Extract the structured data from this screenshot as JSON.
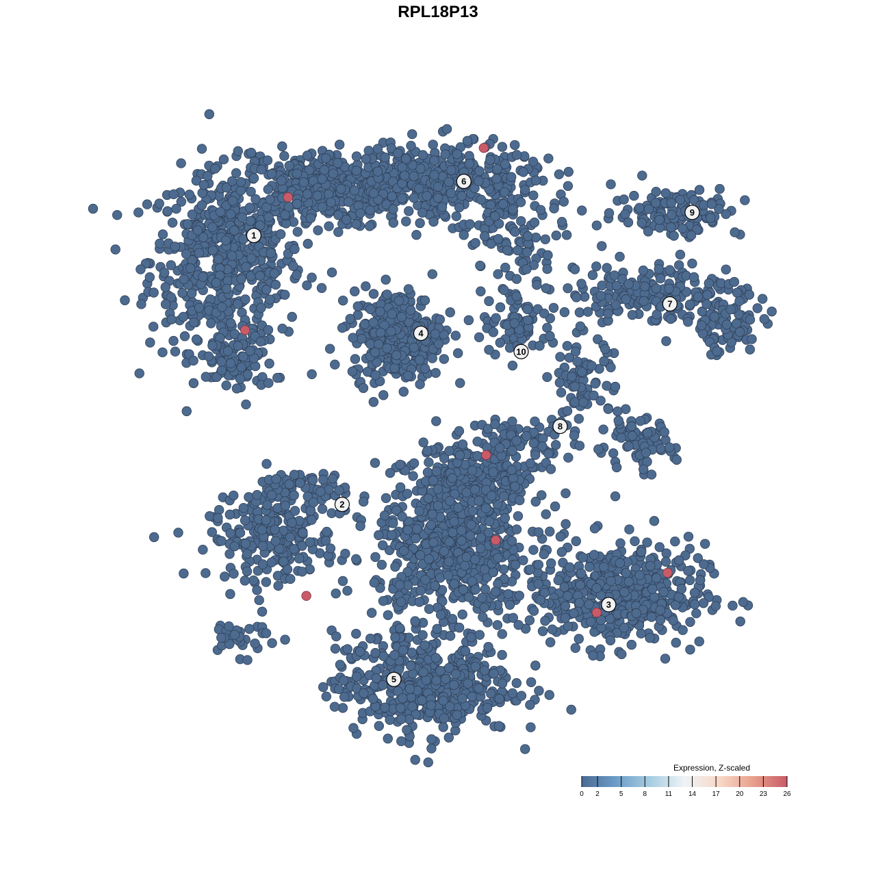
{
  "chart_data": {
    "type": "scatter",
    "title": "RPL18P13",
    "xlim": [
      -40,
      40
    ],
    "ylim": [
      -40,
      40
    ],
    "grid": false,
    "axes_visible": false,
    "point_color_low": "#4d6a8f",
    "point_stroke": "#2f4158",
    "point_color_high": "#c95b68",
    "clusters": [
      {
        "label": "1",
        "label_pos": [
          -25.3,
          25.2
        ],
        "regions": [
          [
            -28.8,
            22.1,
            6,
            7,
            520
          ],
          [
            -17.6,
            31.0,
            6,
            3,
            320
          ],
          [
            -27.5,
            9.2,
            3,
            2.5,
            90
          ]
        ]
      },
      {
        "label": "2",
        "label_pos": [
          -14.2,
          -8.6
        ],
        "regions": [
          [
            -22.8,
            -13.1,
            5,
            3,
            200
          ],
          [
            -20.2,
            -7.1,
            4,
            2,
            90
          ],
          [
            -27,
            -25.2,
            3,
            1.5,
            30
          ]
        ]
      },
      {
        "label": "3",
        "label_pos": [
          19.3,
          -21.2
        ],
        "regions": [
          [
            20.2,
            -20.0,
            7,
            4,
            460
          ]
        ]
      },
      {
        "label": "4",
        "label_pos": [
          -4.3,
          12.9
        ],
        "regions": [
          [
            -7.3,
            12.7,
            3.5,
            3.5,
            360
          ]
        ]
      },
      {
        "label": "5",
        "label_pos": [
          -7.7,
          -30.6
        ],
        "regions": [
          [
            -3.9,
            -31.2,
            7,
            4,
            460
          ],
          [
            -0.4,
            -14.0,
            6,
            6,
            600
          ],
          [
            3.0,
            -5.4,
            5,
            3,
            200
          ]
        ]
      },
      {
        "label": "6",
        "label_pos": [
          1.1,
          32.0
        ],
        "regions": [
          [
            -2.2,
            32.0,
            8,
            3,
            420
          ],
          [
            8.0,
            25.0,
            4,
            3,
            80
          ]
        ]
      },
      {
        "label": "7",
        "label_pos": [
          27.0,
          16.6
        ],
        "regions": [
          [
            25.4,
            17.8,
            7,
            2.5,
            200
          ],
          [
            34.0,
            13.5,
            3,
            2,
            60
          ]
        ]
      },
      {
        "label": "8",
        "label_pos": [
          13.2,
          1.2
        ],
        "regions": [
          [
            22.8,
            -1.1,
            3,
            2,
            80
          ],
          [
            15.9,
            6.6,
            2.5,
            4,
            80
          ],
          [
            8.2,
            -0.3,
            4,
            1.5,
            60
          ]
        ]
      },
      {
        "label": "9",
        "label_pos": [
          29.8,
          28.1
        ],
        "regions": [
          [
            28.0,
            28.2,
            5,
            2,
            120
          ]
        ]
      },
      {
        "label": "10",
        "label_pos": [
          8.3,
          10.6
        ],
        "regions": [
          [
            8.2,
            14.4,
            3,
            3,
            80
          ]
        ]
      }
    ],
    "high_expression_points": [
      {
        "x": -21.0,
        "y": 30.0,
        "value": 26
      },
      {
        "x": -26.4,
        "y": 13.3,
        "value": 26
      },
      {
        "x": 3.6,
        "y": 36.2,
        "value": 26
      },
      {
        "x": 3.9,
        "y": -2.4,
        "value": 26
      },
      {
        "x": 5.1,
        "y": -13.1,
        "value": 26
      },
      {
        "x": 26.7,
        "y": -17.2,
        "value": 26
      },
      {
        "x": 17.8,
        "y": -22.2,
        "value": 26
      },
      {
        "x": -18.7,
        "y": -20.1,
        "value": 26
      }
    ],
    "legend": {
      "title": "Expression, Z-scaled",
      "ticks": [
        "0",
        "2",
        "5",
        "8",
        "11",
        "14",
        "17",
        "20",
        "23",
        "26"
      ],
      "range": [
        0,
        26
      ],
      "colors": [
        "#4a6a94",
        "#6c9dc9",
        "#a7cde2",
        "#eef3f6",
        "#f8d9c9",
        "#e9a08c",
        "#c95b68"
      ]
    }
  }
}
